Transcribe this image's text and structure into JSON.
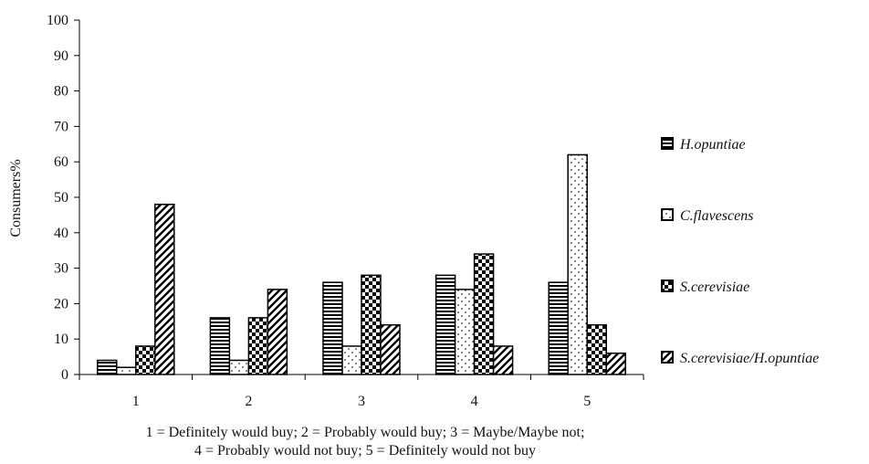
{
  "chart_data": {
    "type": "bar",
    "title": "",
    "xlabel": "",
    "ylabel": "Consumers%",
    "ylim": [
      0,
      100
    ],
    "yticks": [
      0,
      10,
      20,
      30,
      40,
      50,
      60,
      70,
      80,
      90,
      100
    ],
    "grid": false,
    "legend_position": "right",
    "categories": [
      "1",
      "2",
      "3",
      "4",
      "5"
    ],
    "series": [
      {
        "name": "H.opuntiae",
        "pattern": "horizontal-lines",
        "values": [
          4,
          16,
          26,
          28,
          26
        ]
      },
      {
        "name": "C.flavescens",
        "pattern": "dots",
        "values": [
          2,
          4,
          8,
          24,
          62
        ]
      },
      {
        "name": "S.cerevisiae",
        "pattern": "checker",
        "values": [
          8,
          16,
          28,
          34,
          14
        ]
      },
      {
        "name": "S.cerevisiae/H.opuntiae",
        "pattern": "diagonal-stripes",
        "values": [
          48,
          24,
          14,
          8,
          6
        ]
      }
    ],
    "footnote": [
      "1 = Definitely would buy; 2 = Probably would buy; 3 = Maybe/Maybe not;",
      "4 = Probably would not buy; 5 = Definitely would not buy"
    ],
    "colors": {
      "bar_fill": "#ffffff",
      "bar_ink": "#000000",
      "axis": "#000000"
    }
  }
}
